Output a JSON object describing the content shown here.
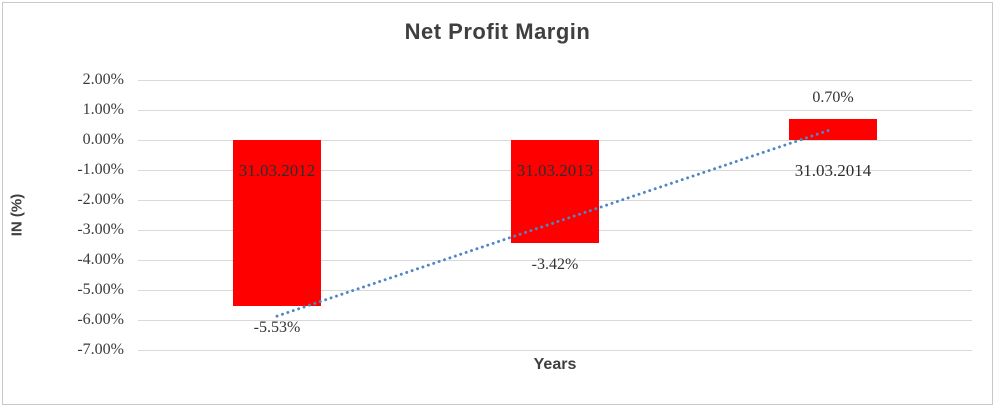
{
  "chart_data": {
    "type": "bar",
    "title": "Net Profit Margin",
    "xlabel": "Years",
    "ylabel": "IN (%)",
    "categories": [
      "31.03.2012",
      "31.03.2013",
      "31.03.2014"
    ],
    "values": [
      -5.53,
      -3.42,
      0.7
    ],
    "data_labels": [
      "-5.53%",
      "-3.42%",
      "0.70%"
    ],
    "ylim": [
      -7,
      2
    ],
    "y_ticks": [
      {
        "value": 2,
        "label": "2.00%"
      },
      {
        "value": 1,
        "label": "1.00%"
      },
      {
        "value": 0,
        "label": "0.00%"
      },
      {
        "value": -1,
        "label": "-1.00%"
      },
      {
        "value": -2,
        "label": "-2.00%"
      },
      {
        "value": -3,
        "label": "-3.00%"
      },
      {
        "value": -4,
        "label": "-4.00%"
      },
      {
        "value": -5,
        "label": "-5.00%"
      },
      {
        "value": -6,
        "label": "-6.00%"
      },
      {
        "value": -7,
        "label": "-7.00%"
      }
    ],
    "grid": true,
    "legend": "none",
    "bar_color": "#ff0000",
    "gridline_color": "#d9d9d9",
    "text_color": "#3f3f3f",
    "trendline": {
      "type": "linear",
      "style": "dotted",
      "color": "#4f86c6",
      "start_value": -5.87,
      "end_value": 0.37
    }
  }
}
